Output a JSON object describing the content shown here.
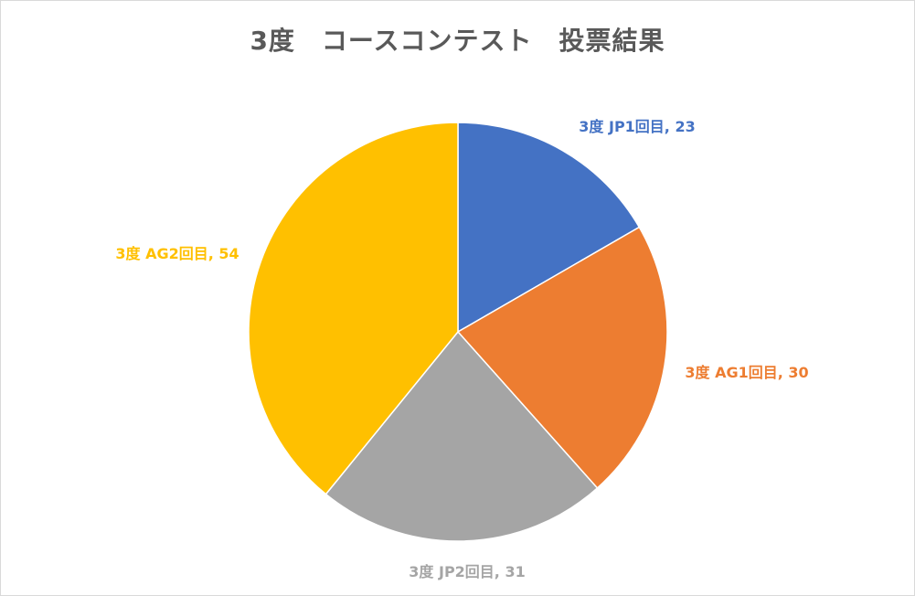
{
  "chart_data": {
    "type": "pie",
    "title": "3度　コースコンテスト　投票結果",
    "slices": [
      {
        "label": "3度 JP1回目",
        "value": 23,
        "color": "#4472C4",
        "data_label": "3度 JP1回目, 23"
      },
      {
        "label": "3度 AG1回目",
        "value": 30,
        "color": "#ED7D31",
        "data_label": "3度 AG1回目, 30"
      },
      {
        "label": "3度 JP2回目",
        "value": 31,
        "color": "#A5A5A5",
        "data_label": "3度 JP2回目, 31"
      },
      {
        "label": "3度 AG2回目",
        "value": 54,
        "color": "#FFC000",
        "data_label": "3度 AG2回目, 54"
      }
    ],
    "start_angle": "12 o'clock",
    "direction": "clockwise",
    "legend": "none",
    "label_position": "outside"
  }
}
